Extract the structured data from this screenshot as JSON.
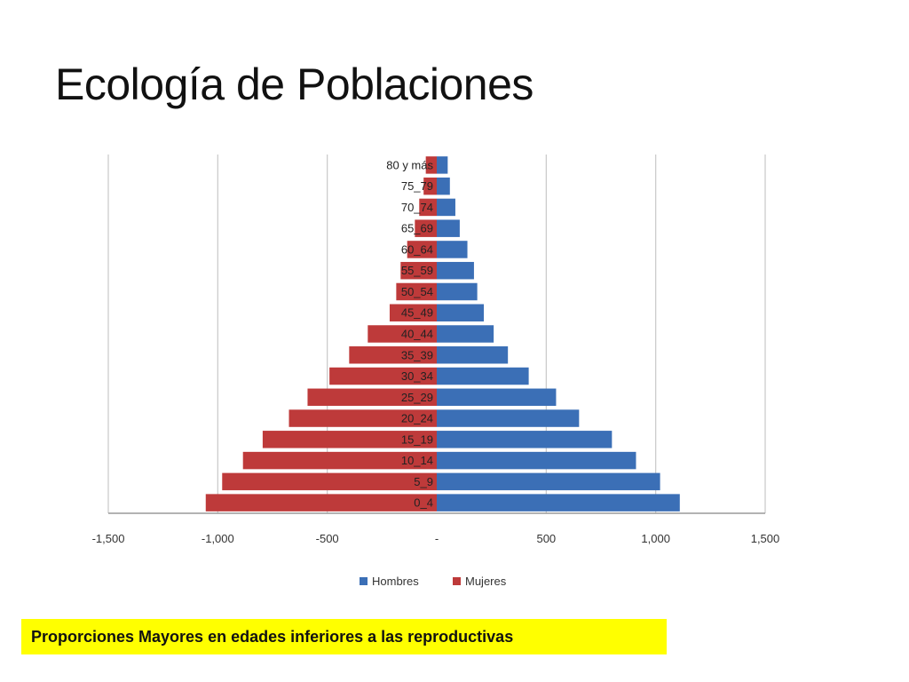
{
  "slide": {
    "title": "Ecología de Poblaciones",
    "caption": "Proporciones Mayores en edades inferiores a las reproductivas"
  },
  "chart_data": {
    "type": "bar",
    "orientation": "horizontal",
    "categories": [
      "80 y más",
      "75_79",
      "70_74",
      "65_69",
      "60_64",
      "55_59",
      "50_54",
      "45_49",
      "40_44",
      "35_39",
      "30_34",
      "25_29",
      "20_24",
      "15_19",
      "10_14",
      "5_9",
      "0_4"
    ],
    "series": [
      {
        "name": "Hombres",
        "color": "#3b6fb6",
        "values": [
          50,
          60,
          85,
          105,
          140,
          170,
          185,
          215,
          260,
          325,
          420,
          545,
          650,
          800,
          910,
          1020,
          1110
        ]
      },
      {
        "name": "Mujeres",
        "color": "#be3a3a",
        "values": [
          -50,
          -60,
          -80,
          -100,
          -135,
          -165,
          -185,
          -215,
          -315,
          -400,
          -490,
          -590,
          -675,
          -795,
          -885,
          -980,
          -1055
        ]
      }
    ],
    "xlim": [
      -1500,
      1500
    ],
    "xticks": [
      -1500,
      -1000,
      -500,
      0,
      500,
      1000,
      1500
    ],
    "xtick_labels": [
      "-1,500",
      "-1,000",
      "-500",
      "-",
      "500",
      "1,000",
      "1,500"
    ],
    "grid": "vertical",
    "legend_position": "bottom",
    "title": "",
    "xlabel": "",
    "ylabel": ""
  }
}
